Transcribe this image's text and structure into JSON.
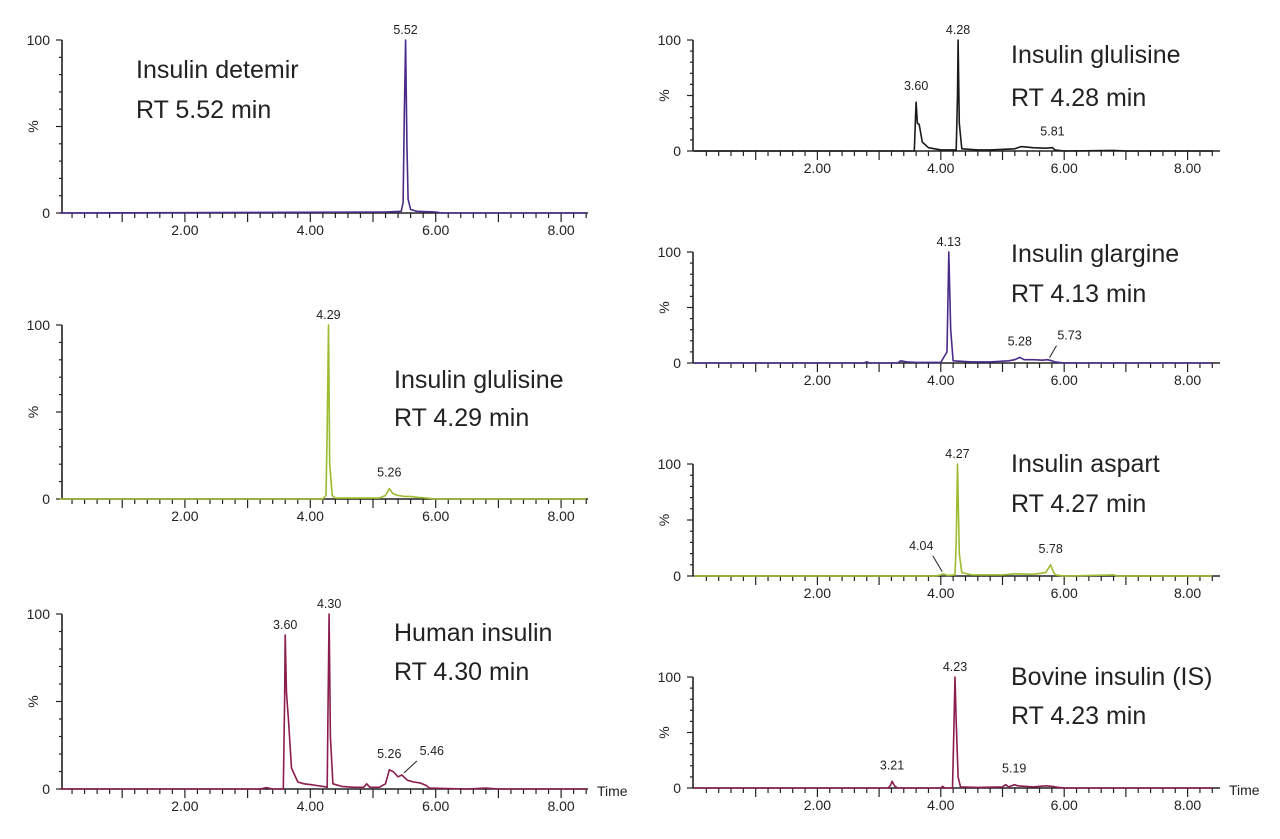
{
  "chart_data": [
    {
      "type": "line",
      "title": "Insulin detemir",
      "subtitle": "RT 5.52 min",
      "xlabel": "",
      "ylabel": "%",
      "xlim": [
        0,
        8.4
      ],
      "ylim": [
        0,
        100
      ],
      "x_ticks": [
        "2.00",
        "4.00",
        "6.00",
        "8.00"
      ],
      "y_ticks": [
        "0",
        "100"
      ],
      "color": "#4b2a8a",
      "peaks": [
        {
          "rt": 5.52,
          "height": 100,
          "label": "5.52"
        }
      ],
      "trace": [
        [
          0,
          0
        ],
        [
          5.2,
          0.5
        ],
        [
          5.45,
          1
        ],
        [
          5.48,
          6
        ],
        [
          5.5,
          60
        ],
        [
          5.52,
          100
        ],
        [
          5.54,
          40
        ],
        [
          5.56,
          8
        ],
        [
          5.6,
          2
        ],
        [
          5.7,
          1
        ],
        [
          5.8,
          0.8
        ],
        [
          6.0,
          0.5
        ],
        [
          6.1,
          0
        ],
        [
          8.4,
          0
        ]
      ]
    },
    {
      "type": "line",
      "title": "Insulin glulisine",
      "subtitle": "RT 4.29 min",
      "xlabel": "",
      "ylabel": "%",
      "xlim": [
        0,
        8.4
      ],
      "ylim": [
        0,
        100
      ],
      "x_ticks": [
        "2.00",
        "4.00",
        "6.00",
        "8.00"
      ],
      "y_ticks": [
        "0",
        "100"
      ],
      "color": "#9cbb2e",
      "peaks": [
        {
          "rt": 4.29,
          "height": 100,
          "label": "4.29"
        },
        {
          "rt": 5.26,
          "height": 6,
          "label": "5.26"
        }
      ],
      "trace": [
        [
          0,
          0
        ],
        [
          4.2,
          0
        ],
        [
          4.25,
          2
        ],
        [
          4.27,
          40
        ],
        [
          4.29,
          100
        ],
        [
          4.31,
          20
        ],
        [
          4.35,
          2
        ],
        [
          4.4,
          0.5
        ],
        [
          5.1,
          0.5
        ],
        [
          5.2,
          2
        ],
        [
          5.26,
          6
        ],
        [
          5.32,
          3
        ],
        [
          5.4,
          2
        ],
        [
          5.5,
          1.5
        ],
        [
          5.6,
          1.5
        ],
        [
          5.7,
          1
        ],
        [
          5.85,
          0.5
        ],
        [
          6.0,
          0
        ],
        [
          8.4,
          0
        ]
      ]
    },
    {
      "type": "line",
      "title": "Human insulin",
      "subtitle": "RT 4.30 min",
      "xlabel": "Time",
      "ylabel": "%",
      "xlim": [
        0,
        8.4
      ],
      "ylim": [
        0,
        100
      ],
      "x_ticks": [
        "2.00",
        "4.00",
        "6.00",
        "8.00"
      ],
      "y_ticks": [
        "0",
        "100"
      ],
      "color": "#8a1c4e",
      "peaks": [
        {
          "rt": 3.6,
          "height": 88,
          "label": "3.60"
        },
        {
          "rt": 4.3,
          "height": 100,
          "label": "4.30"
        },
        {
          "rt": 5.26,
          "height": 11,
          "label": "5.26"
        },
        {
          "rt": 5.46,
          "height": 8,
          "label": "5.46"
        }
      ],
      "trace": [
        [
          0,
          0
        ],
        [
          3.2,
          0
        ],
        [
          3.3,
          0.8
        ],
        [
          3.4,
          0
        ],
        [
          3.57,
          0
        ],
        [
          3.59,
          50
        ],
        [
          3.6,
          88
        ],
        [
          3.62,
          55
        ],
        [
          3.65,
          40
        ],
        [
          3.7,
          12
        ],
        [
          3.8,
          4
        ],
        [
          3.9,
          3
        ],
        [
          4.0,
          2.5
        ],
        [
          4.1,
          2
        ],
        [
          4.2,
          1.5
        ],
        [
          4.27,
          1
        ],
        [
          4.28,
          40
        ],
        [
          4.3,
          100
        ],
        [
          4.32,
          30
        ],
        [
          4.36,
          3
        ],
        [
          4.5,
          1.5
        ],
        [
          4.7,
          1
        ],
        [
          4.85,
          1
        ],
        [
          4.9,
          3
        ],
        [
          4.95,
          1
        ],
        [
          5.1,
          1
        ],
        [
          5.2,
          3
        ],
        [
          5.26,
          11
        ],
        [
          5.32,
          10
        ],
        [
          5.4,
          7
        ],
        [
          5.46,
          8
        ],
        [
          5.55,
          5
        ],
        [
          5.65,
          4
        ],
        [
          5.75,
          3.5
        ],
        [
          5.85,
          2
        ],
        [
          5.9,
          0.5
        ],
        [
          6.5,
          0
        ],
        [
          6.8,
          0.5
        ],
        [
          7.0,
          0
        ],
        [
          8.4,
          0
        ]
      ]
    },
    {
      "type": "line",
      "title": "Insulin glulisine",
      "subtitle": "RT 4.28 min",
      "xlabel": "",
      "ylabel": "%",
      "xlim": [
        0,
        8.4
      ],
      "ylim": [
        0,
        100
      ],
      "x_ticks": [
        "2.00",
        "4.00",
        "6.00",
        "8.00"
      ],
      "y_ticks": [
        "0",
        "100"
      ],
      "color": "#1a1a1a",
      "peaks": [
        {
          "rt": 3.6,
          "height": 44,
          "label": "3.60"
        },
        {
          "rt": 4.28,
          "height": 100,
          "label": "4.28"
        },
        {
          "rt": 5.81,
          "height": 3,
          "label": "5.81"
        }
      ],
      "trace": [
        [
          0,
          0
        ],
        [
          3.57,
          0
        ],
        [
          3.59,
          30
        ],
        [
          3.6,
          44
        ],
        [
          3.62,
          25
        ],
        [
          3.65,
          24
        ],
        [
          3.7,
          8
        ],
        [
          3.8,
          3
        ],
        [
          3.9,
          2
        ],
        [
          4.0,
          1
        ],
        [
          4.25,
          1
        ],
        [
          4.27,
          50
        ],
        [
          4.28,
          100
        ],
        [
          4.3,
          25
        ],
        [
          4.34,
          2
        ],
        [
          4.6,
          1
        ],
        [
          4.8,
          1
        ],
        [
          5.2,
          2
        ],
        [
          5.3,
          4
        ],
        [
          5.5,
          3
        ],
        [
          5.7,
          2.5
        ],
        [
          5.81,
          3
        ],
        [
          5.85,
          1
        ],
        [
          6.0,
          0
        ],
        [
          6.8,
          0.5
        ],
        [
          7.0,
          0
        ],
        [
          8.4,
          0
        ]
      ]
    },
    {
      "type": "line",
      "title": "Insulin glargine",
      "subtitle": "RT 4.13 min",
      "xlabel": "",
      "ylabel": "%",
      "xlim": [
        0,
        8.4
      ],
      "ylim": [
        0,
        100
      ],
      "x_ticks": [
        "2.00",
        "4.00",
        "6.00",
        "8.00"
      ],
      "y_ticks": [
        "0",
        "100"
      ],
      "color": "#4b2a8a",
      "peaks": [
        {
          "rt": 4.13,
          "height": 100,
          "label": "4.13"
        },
        {
          "rt": 5.28,
          "height": 5,
          "label": "5.28"
        },
        {
          "rt": 5.73,
          "height": 3,
          "label": "5.73"
        }
      ],
      "trace": [
        [
          0,
          0
        ],
        [
          2.75,
          0
        ],
        [
          2.8,
          1
        ],
        [
          2.85,
          0
        ],
        [
          3.3,
          0
        ],
        [
          3.35,
          2
        ],
        [
          3.45,
          1
        ],
        [
          3.6,
          0.5
        ],
        [
          4.0,
          0.5
        ],
        [
          4.1,
          10
        ],
        [
          4.13,
          100
        ],
        [
          4.16,
          30
        ],
        [
          4.2,
          2
        ],
        [
          4.5,
          1
        ],
        [
          4.8,
          1
        ],
        [
          5.1,
          2
        ],
        [
          5.2,
          3
        ],
        [
          5.28,
          5
        ],
        [
          5.35,
          3
        ],
        [
          5.5,
          3
        ],
        [
          5.65,
          2.5
        ],
        [
          5.73,
          3
        ],
        [
          5.8,
          2
        ],
        [
          5.85,
          1
        ],
        [
          6.0,
          0
        ],
        [
          8.4,
          0
        ]
      ]
    },
    {
      "type": "line",
      "title": "Insulin aspart",
      "subtitle": "RT 4.27 min",
      "xlabel": "",
      "ylabel": "%",
      "xlim": [
        0,
        8.4
      ],
      "ylim": [
        0,
        100
      ],
      "x_ticks": [
        "2.00",
        "4.00",
        "6.00",
        "8.00"
      ],
      "y_ticks": [
        "0",
        "100"
      ],
      "color": "#9cbb2e",
      "peaks": [
        {
          "rt": 4.04,
          "height": 2,
          "label": "4.04"
        },
        {
          "rt": 4.27,
          "height": 100,
          "label": "4.27"
        },
        {
          "rt": 5.78,
          "height": 10,
          "label": "5.78"
        }
      ],
      "trace": [
        [
          0,
          0
        ],
        [
          3.9,
          0
        ],
        [
          4.0,
          1
        ],
        [
          4.04,
          2
        ],
        [
          4.1,
          0.5
        ],
        [
          4.23,
          1
        ],
        [
          4.25,
          30
        ],
        [
          4.27,
          100
        ],
        [
          4.3,
          20
        ],
        [
          4.34,
          3
        ],
        [
          4.5,
          1
        ],
        [
          5.0,
          1
        ],
        [
          5.2,
          2
        ],
        [
          5.5,
          1.5
        ],
        [
          5.7,
          3
        ],
        [
          5.78,
          10
        ],
        [
          5.82,
          4
        ],
        [
          5.86,
          1
        ],
        [
          6.0,
          0
        ],
        [
          6.8,
          1
        ],
        [
          6.85,
          0
        ],
        [
          8.4,
          0
        ]
      ]
    },
    {
      "type": "line",
      "title": "Bovine insulin (IS)",
      "subtitle": "RT 4.23 min",
      "xlabel": "Time",
      "ylabel": "%",
      "xlim": [
        0,
        8.4
      ],
      "ylim": [
        0,
        100
      ],
      "x_ticks": [
        "2.00",
        "4.00",
        "6.00",
        "8.00"
      ],
      "y_ticks": [
        "0",
        "100"
      ],
      "color": "#8a1c4e",
      "peaks": [
        {
          "rt": 3.21,
          "height": 6,
          "label": "3.21"
        },
        {
          "rt": 4.23,
          "height": 100,
          "label": "4.23"
        },
        {
          "rt": 5.19,
          "height": 3,
          "label": "5.19"
        }
      ],
      "trace": [
        [
          0,
          0
        ],
        [
          3.15,
          0
        ],
        [
          3.19,
          3
        ],
        [
          3.21,
          6
        ],
        [
          3.25,
          2
        ],
        [
          3.3,
          0
        ],
        [
          4.0,
          0
        ],
        [
          4.03,
          1.5
        ],
        [
          4.06,
          0
        ],
        [
          4.19,
          0
        ],
        [
          4.21,
          50
        ],
        [
          4.23,
          100
        ],
        [
          4.25,
          60
        ],
        [
          4.28,
          10
        ],
        [
          4.32,
          1
        ],
        [
          4.6,
          0.5
        ],
        [
          5.0,
          1
        ],
        [
          5.05,
          3
        ],
        [
          5.1,
          1
        ],
        [
          5.19,
          3
        ],
        [
          5.25,
          2
        ],
        [
          5.5,
          1
        ],
        [
          5.7,
          2
        ],
        [
          5.8,
          1.5
        ],
        [
          5.85,
          1
        ],
        [
          6.0,
          0
        ],
        [
          8.4,
          0
        ]
      ]
    }
  ]
}
